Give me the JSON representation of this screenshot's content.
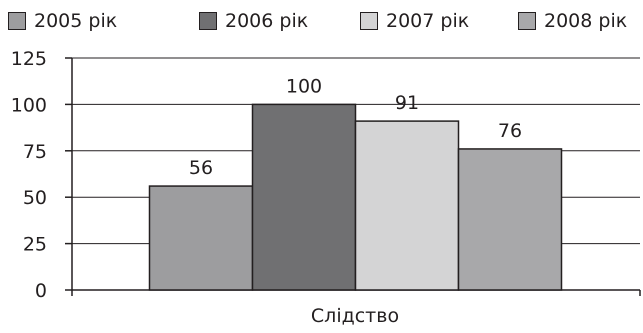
{
  "chart_data": {
    "type": "bar",
    "categories": [
      "Слідство"
    ],
    "series": [
      {
        "name": "2005 рік",
        "values": [
          56
        ],
        "color": "#9d9d9f"
      },
      {
        "name": "2006 рік",
        "values": [
          100
        ],
        "color": "#707072"
      },
      {
        "name": "2007 рік",
        "values": [
          91
        ],
        "color": "#d4d4d5"
      },
      {
        "name": "2008 рік",
        "values": [
          76
        ],
        "color": "#a8a8aa"
      }
    ],
    "title": "",
    "xlabel": "Слідство",
    "ylabel": "",
    "ylim": [
      0,
      125
    ],
    "yticks": [
      0,
      25,
      50,
      75,
      100,
      125
    ],
    "data_labels": true,
    "grid": true,
    "legend_position": "top"
  }
}
